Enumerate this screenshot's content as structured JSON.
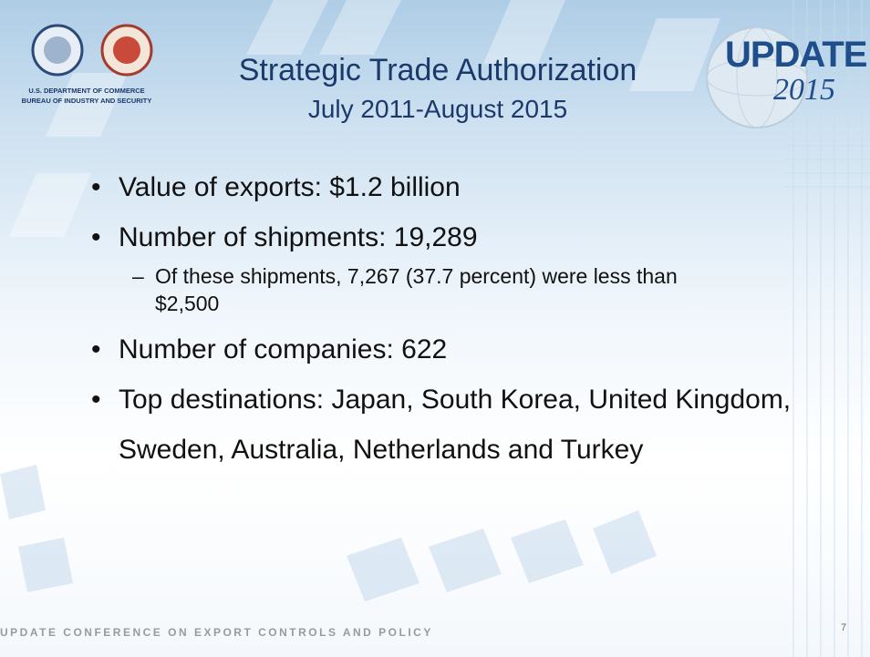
{
  "header": {
    "agency_line1": "U.S. DEPARTMENT OF COMMERCE",
    "agency_line2": "BUREAU OF INDUSTRY AND SECURITY",
    "title": "Strategic Trade Authorization",
    "subtitle": "July 2011-August 2015",
    "logo_word": "UPDATE",
    "logo_year": "2015"
  },
  "bullets": [
    {
      "text": "Value of exports: $1.2 billion"
    },
    {
      "text": "Number of shipments: 19,289",
      "sub": [
        "Of these shipments, 7,267 (37.7 percent) were less than $2,500"
      ]
    },
    {
      "text": "Number of companies: 622"
    },
    {
      "text": "Top destinations: Japan, South Korea, United Kingdom, Sweden, Australia, Netherlands and Turkey"
    }
  ],
  "footer": {
    "text": "UPDATE CONFERENCE ON EXPORT CONTROLS  AND POLICY",
    "page": "7"
  }
}
